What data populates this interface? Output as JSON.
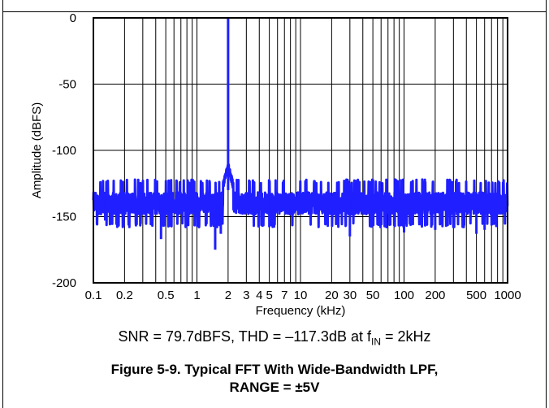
{
  "chart_data": {
    "type": "line",
    "xscale": "log",
    "xlim": [
      0.1,
      1000
    ],
    "ylim": [
      -200,
      0
    ],
    "xlabel": "Frequency (kHz)",
    "ylabel": "Amplitude (dBFS)",
    "x_ticks": [
      "0.1",
      "0.2",
      "0.5",
      "1",
      "2",
      "3",
      "4",
      "5",
      "7",
      "10",
      "20",
      "30",
      "50",
      "100",
      "200",
      "500",
      "1000"
    ],
    "x_tick_values": [
      0.1,
      0.2,
      0.5,
      1,
      2,
      3,
      4,
      5,
      7,
      10,
      20,
      30,
      50,
      100,
      200,
      500,
      1000
    ],
    "y_ticks": [
      "0",
      "-50",
      "-100",
      "-150",
      "-200"
    ],
    "y_tick_values": [
      0,
      -50,
      -100,
      -150,
      -200
    ],
    "grid": true,
    "series_color": "#1f1fff",
    "fundamental": {
      "x": 2,
      "y": 0
    },
    "noise_floor_range": [
      -155,
      -125
    ],
    "spurs": [
      {
        "x": 0.13,
        "y": -153
      },
      {
        "x": 0.45,
        "y": -167
      },
      {
        "x": 1.5,
        "y": -175
      },
      {
        "x": 1.7,
        "y": -163
      },
      {
        "x": 5,
        "y": -158
      },
      {
        "x": 30,
        "y": -165
      },
      {
        "x": 100,
        "y": -162
      },
      {
        "x": 200,
        "y": -160
      },
      {
        "x": 500,
        "y": -163
      },
      {
        "x": 600,
        "y": -160
      }
    ]
  },
  "caption": {
    "prefix": "SNR = 79.7dBFS, THD = –117.3dB at f",
    "sub": "IN",
    "suffix": " = 2kHz"
  },
  "figure_title": {
    "line1": "Figure 5-9. Typical FFT With Wide-Bandwidth LPF,",
    "line2": "RANGE = ±5V"
  }
}
